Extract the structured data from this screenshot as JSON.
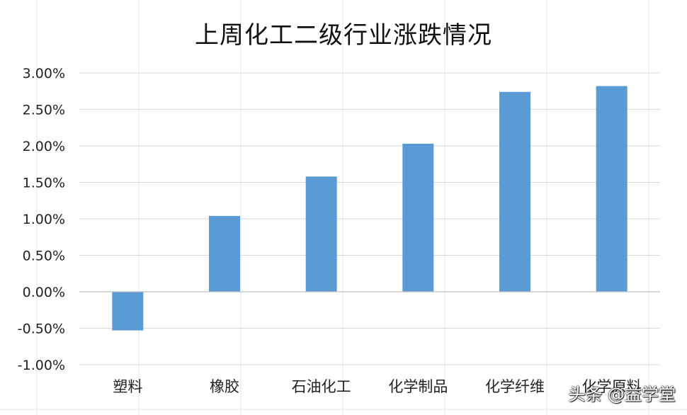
{
  "chart_data": {
    "type": "bar",
    "title": "上周化工二级行业涨跌情况",
    "categories": [
      "塑料",
      "橡胶",
      "石油化工",
      "化学制品",
      "化学纤维",
      "化学原料"
    ],
    "values": [
      -0.53,
      1.04,
      1.58,
      2.03,
      2.74,
      2.82
    ],
    "value_unit": "%",
    "ylim": [
      -1.0,
      3.0
    ],
    "yticks": [
      "3.00%",
      "2.50%",
      "2.00%",
      "1.50%",
      "1.00%",
      "0.50%",
      "0.00%",
      "-0.50%",
      "-1.00%"
    ],
    "ytick_values": [
      3.0,
      2.5,
      2.0,
      1.5,
      1.0,
      0.5,
      0.0,
      -0.5,
      -1.0
    ],
    "grid": true,
    "legend": "none",
    "bar_color": "#5b9bd5",
    "grid_color": "#d9d9d9"
  },
  "watermark": "头条 @益学堂"
}
